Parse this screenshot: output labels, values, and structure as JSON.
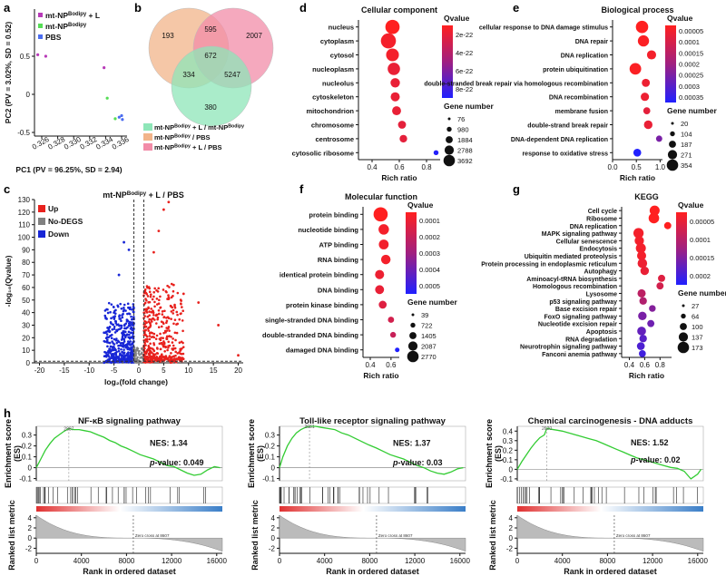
{
  "colors": {
    "up": "#e8211d",
    "nodeg": "#808080",
    "down": "#1826d6",
    "gsea_line": "#33cc33",
    "venn1": "#f2b48a",
    "venn2": "#f28ca8",
    "venn3": "#8ee6b8",
    "q_hi": "#ff2020",
    "q_lo": "#2020ff"
  },
  "chart_data": [
    {
      "id": "a",
      "type": "scatter",
      "xlabel": "PC1 (PV = 96.25%, SD = 2.94)",
      "ylabel": "PC2 (PV = 3.02%, SD = 0.52)",
      "xticks": [
        "0.326",
        "0.328",
        "0.330",
        "0.332",
        "0.334",
        "0.336"
      ],
      "yticks": [
        "0.5",
        "0",
        "-0.5"
      ],
      "legend": [
        {
          "label": "mt-NP",
          "sup": "Bodipy",
          "suffix": " + L",
          "color": "#b83ab8"
        },
        {
          "label": "mt-NP",
          "sup": "Bodipy",
          "suffix": "",
          "color": "#55dd55"
        },
        {
          "label": "PBS",
          "sup": "",
          "suffix": "",
          "color": "#4a6cf0"
        }
      ],
      "points": [
        {
          "x": 0.3255,
          "y": 0.52,
          "group": 0
        },
        {
          "x": 0.3265,
          "y": 0.5,
          "group": 0
        },
        {
          "x": 0.3338,
          "y": 0.35,
          "group": 0
        },
        {
          "x": 0.3342,
          "y": -0.05,
          "group": 1
        },
        {
          "x": 0.3352,
          "y": -0.32,
          "group": 1
        },
        {
          "x": 0.3357,
          "y": -0.3,
          "group": 2
        },
        {
          "x": 0.336,
          "y": -0.28,
          "group": 2
        },
        {
          "x": 0.3361,
          "y": -0.33,
          "group": 2
        }
      ]
    },
    {
      "id": "b",
      "type": "venn",
      "regions": [
        "193",
        "595",
        "2007",
        "672",
        "334",
        "5247",
        "380"
      ],
      "legend": [
        {
          "label": "mt-NP",
          "sup": "Bodipy",
          "suffix": " + L / mt-NP",
          "sup2": "Bodipy",
          "color": "#8ee6b8"
        },
        {
          "label": "mt-NP",
          "sup": "Bodipy",
          "suffix": " / PBS",
          "sup2": "",
          "color": "#f2b48a"
        },
        {
          "label": "mt-NP",
          "sup": "Bodipy",
          "suffix": " + L / PBS",
          "sup2": "",
          "color": "#f28ca8"
        }
      ]
    },
    {
      "id": "c",
      "type": "scatter",
      "title": "mt-NP",
      "title_sup": "Bodipy",
      "title_suffix": " + L / PBS",
      "xlabel": "log₂(fold change)",
      "ylabel": "-log₁₀(Qvalue)",
      "xticks": [
        "-20",
        "-15",
        "-10",
        "-5",
        "0",
        "5",
        "10",
        "15",
        "20"
      ],
      "yticks": [
        "0",
        "10",
        "20",
        "30",
        "40",
        "50",
        "60",
        "70",
        "80",
        "90",
        "100",
        "110",
        "120",
        "130"
      ],
      "legend": [
        "Up",
        "No-DEGS",
        "Down"
      ]
    },
    {
      "id": "d",
      "type": "bubble",
      "title": "Cellular component",
      "xlabel": "Rich ratio",
      "xticks": [
        "0.4",
        "0.6",
        "0.8"
      ],
      "categories": [
        "nucleus",
        "cytoplasm",
        "cytosol",
        "nucleoplasm",
        "nucleolus",
        "cytoskeleton",
        "mitochondrion",
        "chromosome",
        "centrosome",
        "cytosolic ribosome"
      ],
      "rich": [
        0.55,
        0.52,
        0.55,
        0.56,
        0.57,
        0.57,
        0.58,
        0.62,
        0.63,
        0.87
      ],
      "size": [
        3200,
        3692,
        2400,
        2200,
        1000,
        900,
        850,
        600,
        500,
        76
      ],
      "q": [
        0.0,
        0.05,
        0.05,
        0.1,
        0.1,
        0.1,
        0.1,
        0.12,
        0.12,
        0.98
      ],
      "qvalue_title": "Qvalue",
      "qvalue_ticks": [
        "2e-22",
        "4e-22",
        "6e-22",
        "8e-22"
      ],
      "size_title": "Gene number",
      "size_ticks": [
        "76",
        "980",
        "1884",
        "2788",
        "3692"
      ]
    },
    {
      "id": "e",
      "type": "bubble",
      "title": "Biological process",
      "xlabel": "Rich ratio",
      "xticks": [
        "0.0",
        "0.5",
        "1.0"
      ],
      "categories": [
        "cellular response to DNA damage stimulus",
        "DNA repair",
        "DNA replication",
        "protein ubiquitination",
        "double-stranded break repair via homologous recombination",
        "DNA recombination",
        "membrane fusion",
        "double-strand break repair",
        "DNA-dependent DNA replication",
        "response to oxidative stress"
      ],
      "rich": [
        0.62,
        0.65,
        0.82,
        0.48,
        0.7,
        0.68,
        0.72,
        0.75,
        0.98,
        0.52
      ],
      "size": [
        354,
        271,
        150,
        300,
        100,
        110,
        60,
        120,
        40,
        90
      ],
      "q": [
        0.0,
        0.02,
        0.05,
        0.02,
        0.08,
        0.08,
        0.12,
        0.1,
        0.6,
        1.0
      ],
      "qvalue_title": "Qvalue",
      "qvalue_ticks": [
        "0.00005",
        "0.0001",
        "0.00015",
        "0.0002",
        "0.00025",
        "0.0003",
        "0.00035"
      ],
      "size_title": "Gene number",
      "size_ticks": [
        "20",
        "104",
        "187",
        "271",
        "354"
      ]
    },
    {
      "id": "f",
      "type": "bubble",
      "title": "Molecular function",
      "xlabel": "Rich ratio",
      "xticks": [
        "0.4",
        "0.6"
      ],
      "categories": [
        "protein binding",
        "nucleotide binding",
        "ATP binding",
        "RNA binding",
        "identical protein binding",
        "DNA binding",
        "protein kinase binding",
        "single-stranded DNA binding",
        "double-stranded DNA binding",
        "damaged DNA binding"
      ],
      "rich": [
        0.5,
        0.53,
        0.53,
        0.55,
        0.49,
        0.49,
        0.52,
        0.6,
        0.62,
        0.66
      ],
      "size": [
        2770,
        1200,
        1000,
        900,
        800,
        750,
        500,
        200,
        150,
        39
      ],
      "q": [
        0.0,
        0.05,
        0.06,
        0.05,
        0.08,
        0.1,
        0.15,
        0.2,
        0.25,
        1.0
      ],
      "qvalue_title": "Qvalue",
      "qvalue_ticks": [
        "0.0001",
        "0.0002",
        "0.0003",
        "0.0004",
        "0.0005"
      ],
      "size_title": "Gene number",
      "size_ticks": [
        "39",
        "722",
        "1405",
        "2087",
        "2770"
      ]
    },
    {
      "id": "g",
      "type": "bubble",
      "title": "KEGG",
      "xlabel": "Rich ratio",
      "xticks": [
        "0.4",
        "0.6",
        "0.8"
      ],
      "categories": [
        "Cell cycle",
        "Ribosome",
        "DNA replication",
        "MAPK signaling pathway",
        "Cellular senescence",
        "Endocytosis",
        "Ubiquitin mediated proteolysis",
        "Protein processing in endoplasmic reticulum",
        "Autophagy",
        "Aminoacyl-tRNA biosynthesis",
        "Homologous recombination",
        "Lysosome",
        "p53 signaling pathway",
        "Base excision repair",
        "FoxO signaling pathway",
        "Nucleotide excision repair",
        "Apoptosis",
        "RNA degradation",
        "Neurotrophin signaling pathway",
        "Fanconi anemia pathway"
      ],
      "rich": [
        0.73,
        0.72,
        0.9,
        0.52,
        0.53,
        0.55,
        0.56,
        0.57,
        0.6,
        0.82,
        0.8,
        0.56,
        0.58,
        0.7,
        0.57,
        0.68,
        0.56,
        0.58,
        0.55,
        0.57
      ],
      "size": [
        150,
        173,
        50,
        160,
        120,
        150,
        110,
        130,
        90,
        50,
        50,
        80,
        60,
        40,
        90,
        50,
        100,
        60,
        70,
        45
      ],
      "q": [
        0.0,
        0.0,
        0.0,
        0.05,
        0.05,
        0.05,
        0.05,
        0.08,
        0.1,
        0.15,
        0.2,
        0.3,
        0.35,
        0.55,
        0.6,
        0.65,
        0.7,
        0.75,
        0.8,
        0.85
      ],
      "qvalue_title": "Qvalue",
      "qvalue_ticks": [
        "0.00005",
        "0.0001",
        "0.00015",
        "0.0002"
      ],
      "size_title": "Gene number",
      "size_ticks": [
        "27",
        "64",
        "100",
        "137",
        "173"
      ]
    },
    {
      "id": "h1",
      "type": "line",
      "title": "NF-κB signaling pathway",
      "nes": "NES: 1.34",
      "p_label": "p",
      "p_text": "-value: 0.049",
      "peak": "2887",
      "zero_cross": "Zero cross at 8607",
      "xlabel": "Rank in ordered dataset",
      "ylabel_es": "Enrichment score (ES)",
      "ylabel_rank": "Ranked list metric",
      "xticks": [
        "0",
        "4000",
        "8000",
        "12000",
        "16000"
      ],
      "es_ticks": [
        "0.3",
        "0.2",
        "0.1",
        "0",
        "-0.1"
      ],
      "rank_ticks": [
        "4",
        "2",
        "0",
        "-2"
      ],
      "x": [
        0,
        400,
        800,
        1200,
        1600,
        2000,
        2400,
        2887,
        3300,
        3800,
        4300,
        4800,
        5500,
        6000,
        6500,
        7000,
        7500,
        8000,
        8607,
        9200,
        9800,
        10400,
        11000,
        11600,
        12200,
        12800,
        13400,
        14000,
        14600,
        15200,
        15800,
        16300
      ],
      "es": [
        0,
        0.08,
        0.16,
        0.22,
        0.27,
        0.3,
        0.33,
        0.36,
        0.35,
        0.35,
        0.34,
        0.33,
        0.3,
        0.28,
        0.25,
        0.23,
        0.2,
        0.18,
        0.15,
        0.12,
        0.1,
        0.08,
        0.05,
        0.02,
        0.01,
        -0.02,
        -0.05,
        -0.07,
        -0.06,
        -0.02,
        0.01,
        0.0
      ]
    },
    {
      "id": "h2",
      "type": "line",
      "title": "Toll-like receptor signaling pathway",
      "nes": "NES: 1.37",
      "p_label": "p",
      "p_text": "-value: 0.03",
      "peak": "2661",
      "zero_cross": "Zero cross at 8607",
      "xlabel": "Rank in ordered dataset",
      "ylabel_es": "Enrichment score (ES)",
      "ylabel_rank": "Ranked list metric",
      "xticks": [
        "0",
        "4000",
        "8000",
        "12000",
        "16000"
      ],
      "es_ticks": [
        "0.3",
        "0.2",
        "0.1",
        "0",
        "-0.1"
      ],
      "rank_ticks": [
        "4",
        "2",
        "0",
        "-2"
      ],
      "x": [
        0,
        300,
        700,
        1100,
        1500,
        1900,
        2300,
        2661,
        3200,
        3700,
        4300,
        4900,
        5500,
        6100,
        6700,
        7300,
        7900,
        8607,
        9200,
        9800,
        10400,
        11000,
        11600,
        12200,
        12800,
        13400,
        14000,
        14600,
        15200,
        15800,
        16300
      ],
      "es": [
        0,
        0.1,
        0.2,
        0.27,
        0.32,
        0.35,
        0.37,
        0.38,
        0.38,
        0.37,
        0.36,
        0.35,
        0.32,
        0.3,
        0.27,
        0.24,
        0.21,
        0.18,
        0.15,
        0.12,
        0.1,
        0.08,
        0.05,
        0.02,
        0.0,
        -0.03,
        -0.05,
        -0.06,
        -0.04,
        -0.01,
        0.0
      ]
    },
    {
      "id": "h3",
      "type": "line",
      "title": "Chemical carcinogenesis - DNA adducts",
      "nes": "NES: 1.52",
      "p_label": "p",
      "p_text": "-value: 0.02",
      "peak": "2620",
      "zero_cross": "Zero cross at 8607",
      "xlabel": "Rank in ordered dataset",
      "ylabel_es": "Enrichment score (ES)",
      "ylabel_rank": "Ranked list metric",
      "xticks": [
        "0",
        "4000",
        "8000",
        "12000",
        "16000"
      ],
      "es_ticks": [
        "0.4",
        "0.3",
        "0.2",
        "0.1",
        "0",
        "-0.1"
      ],
      "rank_ticks": [
        "4",
        "2",
        "0",
        "-2"
      ],
      "x": [
        0,
        400,
        800,
        1200,
        1600,
        2000,
        2400,
        2620,
        3000,
        3500,
        4000,
        4600,
        5200,
        5800,
        6400,
        7000,
        7600,
        8200,
        8800,
        9400,
        10000,
        10600,
        11200,
        11800,
        12400,
        13000,
        13600,
        14200,
        14800,
        15400,
        16000,
        16300
      ],
      "es": [
        0,
        0.08,
        0.15,
        0.22,
        0.28,
        0.33,
        0.36,
        0.43,
        0.42,
        0.41,
        0.4,
        0.38,
        0.36,
        0.34,
        0.32,
        0.3,
        0.27,
        0.24,
        0.21,
        0.18,
        0.15,
        0.12,
        0.1,
        0.08,
        0.06,
        0.04,
        0.02,
        0.01,
        -0.02,
        -0.1,
        -0.05,
        0.0
      ]
    }
  ],
  "labels": {
    "a": "a",
    "b": "b",
    "c": "c",
    "d": "d",
    "e": "e",
    "f": "f",
    "g": "g",
    "h": "h"
  }
}
